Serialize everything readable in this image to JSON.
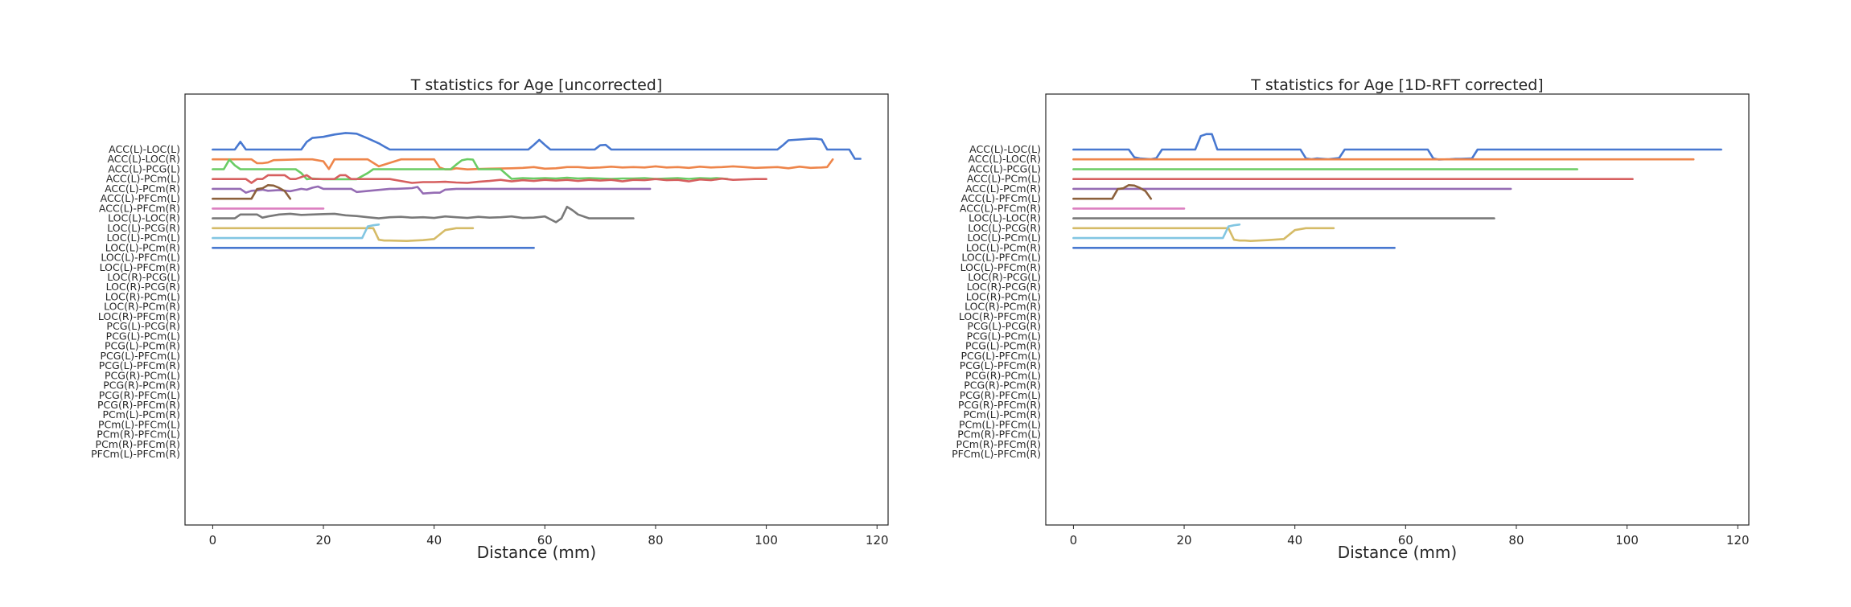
{
  "chart_data": [
    {
      "type": "line",
      "title": "T statistics for Age [uncorrected]",
      "xlabel": "Distance (mm)",
      "ylabel": "",
      "xlim": [
        -5,
        122
      ],
      "xticks": [
        0,
        20,
        40,
        60,
        80,
        100,
        120
      ],
      "yticklabels": [
        "ACC(L)-LOC(L)",
        "ACC(L)-LOC(R)",
        "ACC(L)-PCG(L)",
        "ACC(L)-PCm(L)",
        "ACC(L)-PCm(R)",
        "ACC(L)-PFCm(L)",
        "ACC(L)-PFCm(R)",
        "LOC(L)-LOC(R)",
        "LOC(L)-PCG(R)",
        "LOC(L)-PCm(L)",
        "LOC(L)-PCm(R)",
        "LOC(L)-PFCm(L)",
        "LOC(L)-PFCm(R)",
        "LOC(R)-PCG(L)",
        "LOC(R)-PCG(R)",
        "LOC(R)-PCm(L)",
        "LOC(R)-PCm(R)",
        "LOC(R)-PFCm(R)",
        "PCG(L)-PCG(R)",
        "PCG(L)-PCm(L)",
        "PCG(L)-PCm(R)",
        "PCG(L)-PFCm(L)",
        "PCG(L)-PFCm(R)",
        "PCG(R)-PCm(L)",
        "PCG(R)-PCm(R)",
        "PCG(R)-PFCm(L)",
        "PCG(R)-PFCm(R)",
        "PCm(L)-PCm(R)",
        "PCm(L)-PFCm(L)",
        "PCm(R)-PFCm(L)",
        "PCm(R)-PFCm(R)",
        "PFCm(L)-PFCm(R)"
      ],
      "grid": false,
      "legend": "none",
      "palette": [
        "#4878d0",
        "#ee854a",
        "#6acc64",
        "#d65f5f",
        "#956cb4",
        "#8c613c",
        "#dc7ec0",
        "#797979",
        "#d5bb67",
        "#82c6e2"
      ],
      "series": [
        {
          "x": [
            0,
            4,
            5,
            6,
            16,
            17,
            18,
            20,
            22,
            24,
            25,
            26,
            28,
            30,
            31,
            32,
            57,
            58,
            59,
            60,
            61,
            69,
            70,
            71,
            72,
            102,
            103,
            104,
            108,
            109,
            110,
            111,
            113,
            114,
            115,
            116,
            117
          ],
          "y": [
            0,
            0,
            2,
            0,
            0,
            2,
            3,
            3.3,
            3.9,
            4.3,
            4.2,
            4.1,
            2.9,
            1.6,
            0.8,
            0,
            0,
            1.2,
            2.5,
            1.2,
            0,
            0,
            1.1,
            1.2,
            0,
            0,
            1.1,
            2.4,
            2.8,
            2.8,
            2.6,
            0,
            0,
            0,
            0,
            -2.4,
            -2.4
          ]
        },
        {
          "x": [
            0,
            4,
            5,
            6,
            7,
            8,
            9,
            10,
            11,
            16,
            17,
            18,
            20,
            21,
            22,
            26,
            28,
            30,
            34,
            35,
            36,
            40,
            41,
            42,
            43,
            44,
            46,
            48,
            50,
            54,
            56,
            58,
            60,
            62,
            64,
            66,
            68,
            70,
            72,
            74,
            76,
            78,
            80,
            82,
            84,
            86,
            88,
            90,
            92,
            94,
            96,
            98,
            100,
            102,
            104,
            106,
            108,
            110,
            111,
            112
          ],
          "y": [
            0,
            0,
            0,
            0,
            0,
            -1,
            -1,
            -0.8,
            -0.2,
            0,
            0,
            0,
            -0.5,
            -2.5,
            0,
            0,
            0,
            -1.8,
            0,
            0,
            0,
            0,
            -2.1,
            -2.6,
            -2.6,
            -2.3,
            -2.6,
            -2.5,
            -2.4,
            -2.3,
            -2.2,
            -2,
            -2.4,
            -2.3,
            -2,
            -2,
            -2.2,
            -2.1,
            -1.9,
            -2.1,
            -2,
            -2.1,
            -1.8,
            -2.1,
            -2,
            -2.2,
            -1.9,
            -2.1,
            -2,
            -1.8,
            -2,
            -2.2,
            -2.1,
            -2,
            -2.3,
            -1.9,
            -2.2,
            -2.1,
            -2,
            0
          ]
        },
        {
          "x": [
            0,
            1,
            2,
            3,
            4,
            5,
            6,
            14,
            15,
            16,
            17,
            18,
            20,
            26,
            28,
            29,
            30,
            31,
            40,
            41,
            42,
            43,
            44,
            45,
            46,
            47,
            48,
            52,
            54,
            56,
            58,
            60,
            62,
            64,
            66,
            68,
            70,
            72,
            74,
            76,
            78,
            80,
            82,
            84,
            86,
            88,
            90,
            91,
            92,
            93
          ],
          "y": [
            0,
            0,
            0,
            2.5,
            1,
            0,
            0,
            0,
            0,
            -1,
            -2.6,
            -2.4,
            -2.6,
            -2.6,
            -1,
            0,
            0,
            0,
            0,
            0,
            0,
            0,
            1.2,
            2.3,
            2.6,
            2.5,
            0,
            0,
            -2.5,
            -2.3,
            -2.4,
            -2.3,
            -2.4,
            -2.2,
            -2.4,
            -2.3,
            -2.4,
            -2.5,
            -2.4,
            -2.4,
            -2.3,
            -2.5,
            -2.4,
            -2.3,
            -2.5,
            -2.3,
            -2.4,
            -2.3,
            -2.4,
            -2.5
          ]
        },
        {
          "x": [
            0,
            6,
            7,
            8,
            9,
            10,
            13,
            14,
            15,
            17,
            18,
            19,
            22,
            23,
            24,
            25,
            30,
            32,
            34,
            36,
            38,
            40,
            42,
            44,
            46,
            48,
            50,
            52,
            54,
            56,
            58,
            60,
            62,
            64,
            66,
            68,
            70,
            72,
            74,
            76,
            78,
            80,
            82,
            84,
            86,
            88,
            90,
            92,
            94,
            96,
            98,
            100
          ],
          "y": [
            0,
            0,
            -1,
            0,
            0,
            1,
            1,
            0,
            0,
            1,
            0,
            0,
            0,
            1,
            1,
            0,
            0,
            0,
            -0.5,
            -1,
            -0.8,
            -0.8,
            -0.7,
            -0.9,
            -1,
            -0.7,
            -0.5,
            -0.2,
            -0.6,
            -0.3,
            -0.5,
            -0.2,
            -0.4,
            -0.2,
            -0.5,
            -0.2,
            -0.4,
            -0.2,
            -0.6,
            -0.2,
            -0.3,
            0,
            -0.3,
            -0.2,
            -0.6,
            -0.1,
            -0.3,
            0.1,
            -0.2,
            -0.1,
            0,
            0
          ]
        },
        {
          "x": [
            0,
            5,
            6,
            7,
            8,
            9,
            10,
            12,
            14,
            15,
            16,
            17,
            18,
            19,
            20,
            25,
            26,
            32,
            33,
            36,
            37,
            38,
            40,
            41,
            42,
            44,
            45,
            48,
            50,
            52,
            54,
            56,
            58,
            60,
            62,
            64,
            66,
            68,
            70,
            72,
            74,
            76,
            78,
            79
          ],
          "y": [
            0,
            0,
            -1,
            -0.5,
            -0.4,
            -0.2,
            -0.5,
            -0.3,
            -0.6,
            -0.3,
            0,
            -0.2,
            0.3,
            0.6,
            0,
            0,
            -0.8,
            0,
            0,
            0.2,
            0.5,
            -1.2,
            -1,
            -1,
            -0.2,
            0,
            0,
            0,
            0,
            0,
            0,
            0,
            0,
            0,
            0,
            0,
            0,
            0,
            0,
            0,
            0,
            0,
            0,
            0
          ]
        },
        {
          "x": [
            0,
            7,
            8,
            9,
            10,
            11,
            12,
            13,
            14
          ],
          "y": [
            0,
            0,
            2.5,
            2.7,
            3.5,
            3.4,
            2.8,
            2,
            0
          ]
        },
        {
          "x": [
            0,
            4,
            6,
            8,
            10,
            12,
            14,
            16,
            18,
            20
          ],
          "y": [
            0,
            0,
            0,
            0,
            0,
            0,
            0,
            0,
            0,
            0
          ]
        },
        {
          "x": [
            0,
            4,
            5,
            8,
            9,
            10,
            12,
            14,
            16,
            18,
            20,
            22,
            24,
            26,
            28,
            30,
            32,
            34,
            36,
            38,
            40,
            42,
            44,
            46,
            48,
            50,
            52,
            54,
            56,
            58,
            60,
            62,
            63,
            64,
            65,
            66,
            68,
            70,
            72,
            74,
            76
          ],
          "y": [
            0,
            0,
            1,
            1,
            0.2,
            0.5,
            1,
            1.2,
            0.9,
            1,
            1.1,
            1.2,
            0.8,
            0.6,
            0.3,
            0,
            0.3,
            0.4,
            0.2,
            0.3,
            0.1,
            0.5,
            0.3,
            0.1,
            0.4,
            0.2,
            0.3,
            0.5,
            0.1,
            0.2,
            0.5,
            -1,
            0,
            3,
            2.1,
            1,
            0,
            0,
            0,
            0,
            0
          ]
        },
        {
          "x": [
            0,
            2,
            4,
            6,
            8,
            10,
            12,
            14,
            16,
            18,
            20,
            22,
            24,
            26,
            28,
            29,
            30,
            31,
            32,
            35,
            38,
            40,
            42,
            44,
            45,
            46,
            47
          ],
          "y": [
            0,
            0,
            0,
            0,
            0,
            0,
            0,
            0,
            0,
            0,
            0,
            0,
            0,
            0,
            0,
            0,
            -3,
            -3.2,
            -3.2,
            -3.3,
            -3.1,
            -2.8,
            -0.5,
            0,
            0,
            0,
            0
          ]
        },
        {
          "x": [
            0,
            2,
            4,
            6,
            8,
            10,
            12,
            14,
            16,
            18,
            20,
            22,
            24,
            26,
            27,
            28,
            29,
            30
          ],
          "y": [
            0,
            0,
            0,
            0,
            0,
            0,
            0,
            0,
            0,
            0,
            0,
            0,
            0,
            0,
            0,
            3,
            3.3,
            3.5
          ]
        },
        {
          "x": [
            0,
            2,
            4,
            6,
            8,
            10,
            12,
            14,
            16,
            18,
            20,
            22,
            24,
            26,
            28,
            30,
            32,
            34,
            36,
            38,
            40,
            42,
            44,
            46,
            48,
            50,
            52,
            54,
            56,
            58
          ],
          "y": [
            0,
            0,
            0,
            0,
            0,
            0,
            0,
            0,
            0,
            0,
            0,
            0,
            0,
            0,
            0,
            0,
            0,
            0,
            0,
            0,
            0,
            0,
            0,
            0,
            0,
            0,
            0,
            0,
            0,
            0
          ]
        }
      ]
    },
    {
      "type": "line",
      "title": "T statistics for Age [1D-RFT corrected]",
      "xlabel": "Distance (mm)",
      "ylabel": "",
      "xlim": [
        -5,
        122
      ],
      "xticks": [
        0,
        20,
        40,
        60,
        80,
        100,
        120
      ],
      "yticklabels": [
        "ACC(L)-LOC(L)",
        "ACC(L)-LOC(R)",
        "ACC(L)-PCG(L)",
        "ACC(L)-PCm(L)",
        "ACC(L)-PCm(R)",
        "ACC(L)-PFCm(L)",
        "ACC(L)-PFCm(R)",
        "LOC(L)-LOC(R)",
        "LOC(L)-PCG(R)",
        "LOC(L)-PCm(L)",
        "LOC(L)-PCm(R)",
        "LOC(L)-PFCm(L)",
        "LOC(L)-PFCm(R)",
        "LOC(R)-PCG(L)",
        "LOC(R)-PCG(R)",
        "LOC(R)-PCm(L)",
        "LOC(R)-PCm(R)",
        "LOC(R)-PFCm(R)",
        "PCG(L)-PCG(R)",
        "PCG(L)-PCm(L)",
        "PCG(L)-PCm(R)",
        "PCG(L)-PFCm(L)",
        "PCG(L)-PFCm(R)",
        "PCG(R)-PCm(L)",
        "PCG(R)-PCm(R)",
        "PCG(R)-PFCm(L)",
        "PCG(R)-PFCm(R)",
        "PCm(L)-PCm(R)",
        "PCm(L)-PFCm(L)",
        "PCm(R)-PFCm(L)",
        "PCm(R)-PFCm(R)",
        "PFCm(L)-PFCm(R)"
      ],
      "grid": false,
      "legend": "none",
      "palette": [
        "#4878d0",
        "#ee854a",
        "#6acc64",
        "#d65f5f",
        "#956cb4",
        "#8c613c",
        "#dc7ec0",
        "#797979",
        "#d5bb67",
        "#82c6e2"
      ],
      "series": [
        {
          "x": [
            0,
            10,
            11,
            12,
            14,
            15,
            16,
            22,
            23,
            24,
            25,
            26,
            27,
            41,
            42,
            43,
            44,
            46,
            48,
            49,
            50,
            64,
            65,
            66,
            68,
            69,
            70,
            72,
            73,
            117
          ],
          "y": [
            0,
            0,
            -2,
            -2.3,
            -2.5,
            -2.2,
            0,
            0,
            3.5,
            4,
            4,
            0,
            0,
            0,
            -2.3,
            -2.5,
            -2.3,
            -2.5,
            -2.2,
            0,
            0,
            0,
            -2.3,
            -2.6,
            -2.5,
            -2.4,
            -2.4,
            -2.3,
            0,
            0
          ]
        },
        {
          "x": [
            0,
            112
          ],
          "y": [
            0,
            0
          ]
        },
        {
          "x": [
            0,
            91
          ],
          "y": [
            0,
            0
          ]
        },
        {
          "x": [
            0,
            101
          ],
          "y": [
            0,
            0
          ]
        },
        {
          "x": [
            0,
            79
          ],
          "y": [
            0,
            0
          ]
        },
        {
          "x": [
            0,
            7,
            8,
            9,
            10,
            11,
            12,
            13,
            14
          ],
          "y": [
            0,
            0,
            2.5,
            2.7,
            3.5,
            3.4,
            2.8,
            2,
            0
          ]
        },
        {
          "x": [
            0,
            20
          ],
          "y": [
            0,
            0
          ]
        },
        {
          "x": [
            0,
            76
          ],
          "y": [
            0,
            0
          ]
        },
        {
          "x": [
            0,
            28,
            29,
            30,
            31,
            32,
            35,
            38,
            40,
            42,
            44,
            47
          ],
          "y": [
            0,
            0,
            -3,
            -3.2,
            -3.2,
            -3.3,
            -3.1,
            -2.8,
            -0.5,
            0,
            0,
            0
          ]
        },
        {
          "x": [
            0,
            27,
            28,
            29,
            30
          ],
          "y": [
            0,
            0,
            3,
            3.3,
            3.5
          ]
        },
        {
          "x": [
            0,
            58
          ],
          "y": [
            0,
            0
          ]
        }
      ]
    }
  ]
}
